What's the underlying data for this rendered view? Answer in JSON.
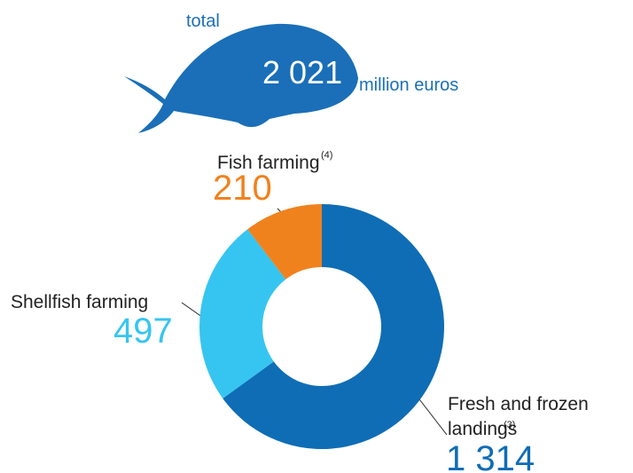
{
  "chart_data": {
    "type": "pie",
    "total": {
      "label": "total",
      "value": 2021,
      "value_label": "2 021",
      "unit": "million euros"
    },
    "categories": [
      "Fresh and frozen landings",
      "Shellfish farming",
      "Fish farming"
    ],
    "footnotes": [
      "(3)",
      null,
      "(4)"
    ],
    "values": [
      1314,
      497,
      210
    ],
    "value_labels": [
      "1 314",
      "497",
      "210"
    ],
    "colors": [
      "#0f6db5",
      "#36c5f0",
      "#f0821e"
    ]
  }
}
